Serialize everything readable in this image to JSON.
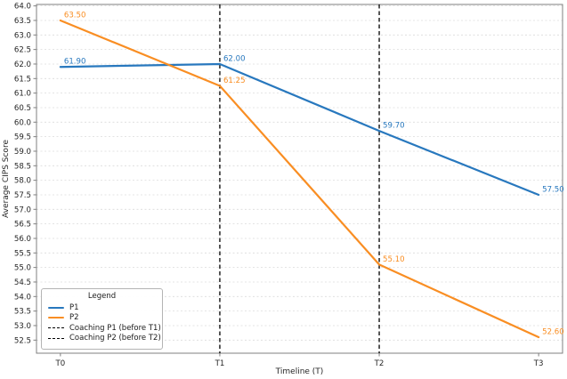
{
  "chart_data": {
    "type": "line",
    "title": "",
    "xlabel": "Timeline (T)",
    "ylabel": "Average CIPS Score",
    "x_tick_labels": [
      "T0",
      "T1",
      "T2",
      "T3"
    ],
    "x": [
      0,
      1,
      2,
      3
    ],
    "xlim": [
      -0.15,
      3.15
    ],
    "ylim": [
      52.05,
      64.05
    ],
    "yticks": [
      52.5,
      53.0,
      53.5,
      54.0,
      54.5,
      55.0,
      55.5,
      56.0,
      56.5,
      57.0,
      57.5,
      58.0,
      58.5,
      59.0,
      59.5,
      60.0,
      60.5,
      61.0,
      61.5,
      62.0,
      62.5,
      63.0,
      63.5,
      64.0
    ],
    "grid": true,
    "series": [
      {
        "name": "P1",
        "color": "#2878be",
        "values": [
          61.9,
          62.0,
          59.7,
          57.5
        ],
        "point_labels": [
          "61.90",
          "62.00",
          "59.70",
          "57.50"
        ]
      },
      {
        "name": "P2",
        "color": "#f98e23",
        "values": [
          63.5,
          61.25,
          55.1,
          52.6
        ],
        "point_labels": [
          "63.50",
          "61.25",
          "55.10",
          "52.60"
        ]
      }
    ],
    "vlines": [
      {
        "x": 1,
        "label": "Coaching P1 (before T1)",
        "color": "#000000",
        "style": "dashed"
      },
      {
        "x": 2,
        "label": "Coaching P2 (before T2)",
        "color": "#000000",
        "style": "dashed"
      }
    ],
    "legend": {
      "title": "Legend",
      "position": "lower-left"
    },
    "colors": {
      "grid": "#dcdcdc",
      "spine": "#7f7f7f",
      "tick_text": "#262626"
    }
  }
}
